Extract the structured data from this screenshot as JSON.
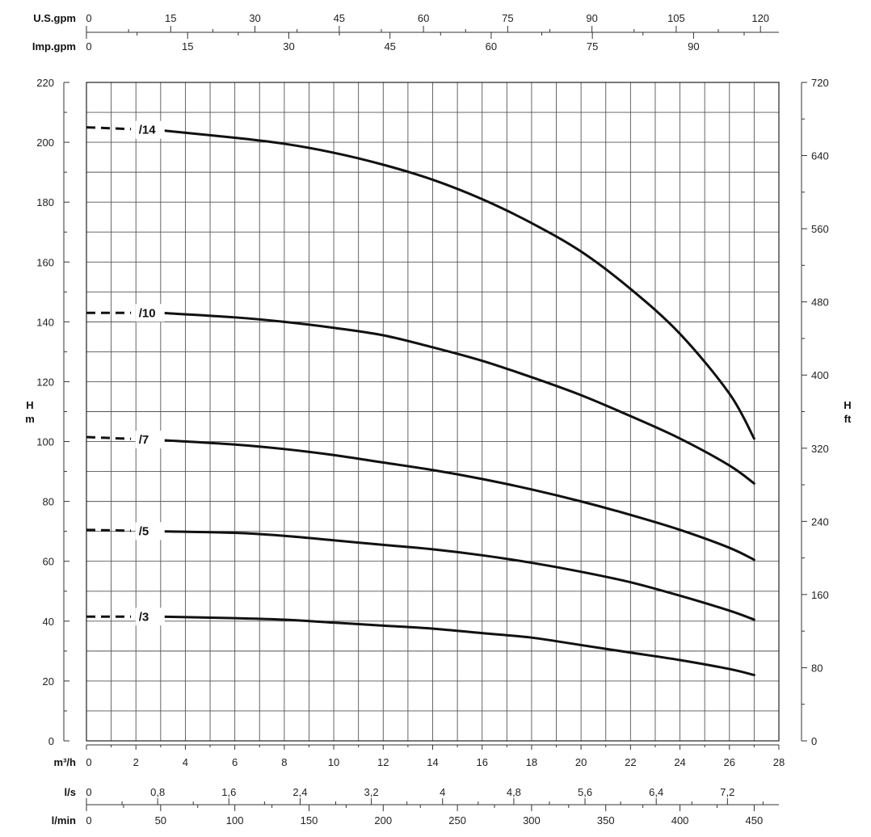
{
  "chart_data": {
    "type": "line",
    "title": "",
    "xlabel": "m³/h",
    "x_range": [
      0,
      28
    ],
    "x_ticks": [
      "0",
      "2",
      "4",
      "6",
      "8",
      "10",
      "12",
      "14",
      "16",
      "18",
      "20",
      "22",
      "24",
      "26",
      "28"
    ],
    "ylabel_left": "H m",
    "ylabel_left_parts": [
      "H",
      "m"
    ],
    "y_range": [
      0,
      220
    ],
    "y_ticks": [
      "0",
      "20",
      "40",
      "60",
      "80",
      "100",
      "120",
      "140",
      "160",
      "180",
      "200",
      "220"
    ],
    "ylabel_right": "H ft",
    "ylabel_right_parts": [
      "H",
      "ft"
    ],
    "y_right_range": [
      0,
      720
    ],
    "y_right_ticks": [
      "0",
      "80",
      "160",
      "240",
      "320",
      "400",
      "480",
      "560",
      "640",
      "720"
    ],
    "secondary_x_axes": {
      "us_gpm": {
        "label": "U.S.gpm",
        "ticks": [
          "0",
          "15",
          "30",
          "45",
          "60",
          "75",
          "90",
          "105",
          "120"
        ]
      },
      "imp_gpm": {
        "label": "Imp.gpm",
        "ticks": [
          "0",
          "15",
          "30",
          "45",
          "60",
          "75",
          "90"
        ]
      },
      "l_s": {
        "label": "l/s",
        "ticks": [
          "0",
          "0,8",
          "1,6",
          "2,4",
          "3,2",
          "4",
          "4,8",
          "5,6",
          "6,4",
          "7,2"
        ]
      },
      "l_min": {
        "label": "l/min",
        "ticks": [
          "0",
          "50",
          "100",
          "150",
          "200",
          "250",
          "300",
          "350",
          "400",
          "450"
        ]
      }
    },
    "grid": true,
    "series": [
      {
        "name": "/14",
        "x": [
          0,
          3,
          6,
          8,
          10,
          12,
          14,
          16,
          18,
          20,
          22,
          24,
          26,
          27
        ],
        "y": [
          205,
          204,
          201.5,
          199.5,
          196.5,
          192.5,
          187.5,
          181,
          173,
          163.5,
          151,
          136,
          116,
          101
        ]
      },
      {
        "name": "/10",
        "x": [
          0,
          3,
          6,
          8,
          10,
          12,
          14,
          16,
          18,
          20,
          22,
          24,
          26,
          27
        ],
        "y": [
          143,
          143,
          141.5,
          140,
          138,
          135.5,
          131.5,
          127,
          121.5,
          115.5,
          108.5,
          101,
          92,
          86
        ]
      },
      {
        "name": "/7",
        "x": [
          0,
          3,
          6,
          8,
          10,
          12,
          14,
          16,
          18,
          20,
          22,
          24,
          26,
          27
        ],
        "y": [
          101.5,
          100.5,
          99,
          97.5,
          95.5,
          93,
          90.5,
          87.5,
          84,
          80,
          75.5,
          70.5,
          64.5,
          60.5
        ]
      },
      {
        "name": "/5",
        "x": [
          0,
          3,
          6,
          8,
          10,
          12,
          14,
          16,
          18,
          20,
          22,
          24,
          26,
          27
        ],
        "y": [
          70.5,
          70,
          69.5,
          68.5,
          67,
          65.5,
          64,
          62,
          59.5,
          56.5,
          53,
          48.5,
          43.5,
          40.5
        ]
      },
      {
        "name": "/3",
        "x": [
          0,
          3,
          6,
          8,
          10,
          12,
          14,
          16,
          18,
          20,
          22,
          24,
          26,
          27
        ],
        "y": [
          41.5,
          41.5,
          41,
          40.5,
          39.5,
          38.5,
          37.5,
          36,
          34.5,
          32,
          29.5,
          27,
          24,
          22
        ]
      }
    ],
    "dashed_until_x": 3
  }
}
